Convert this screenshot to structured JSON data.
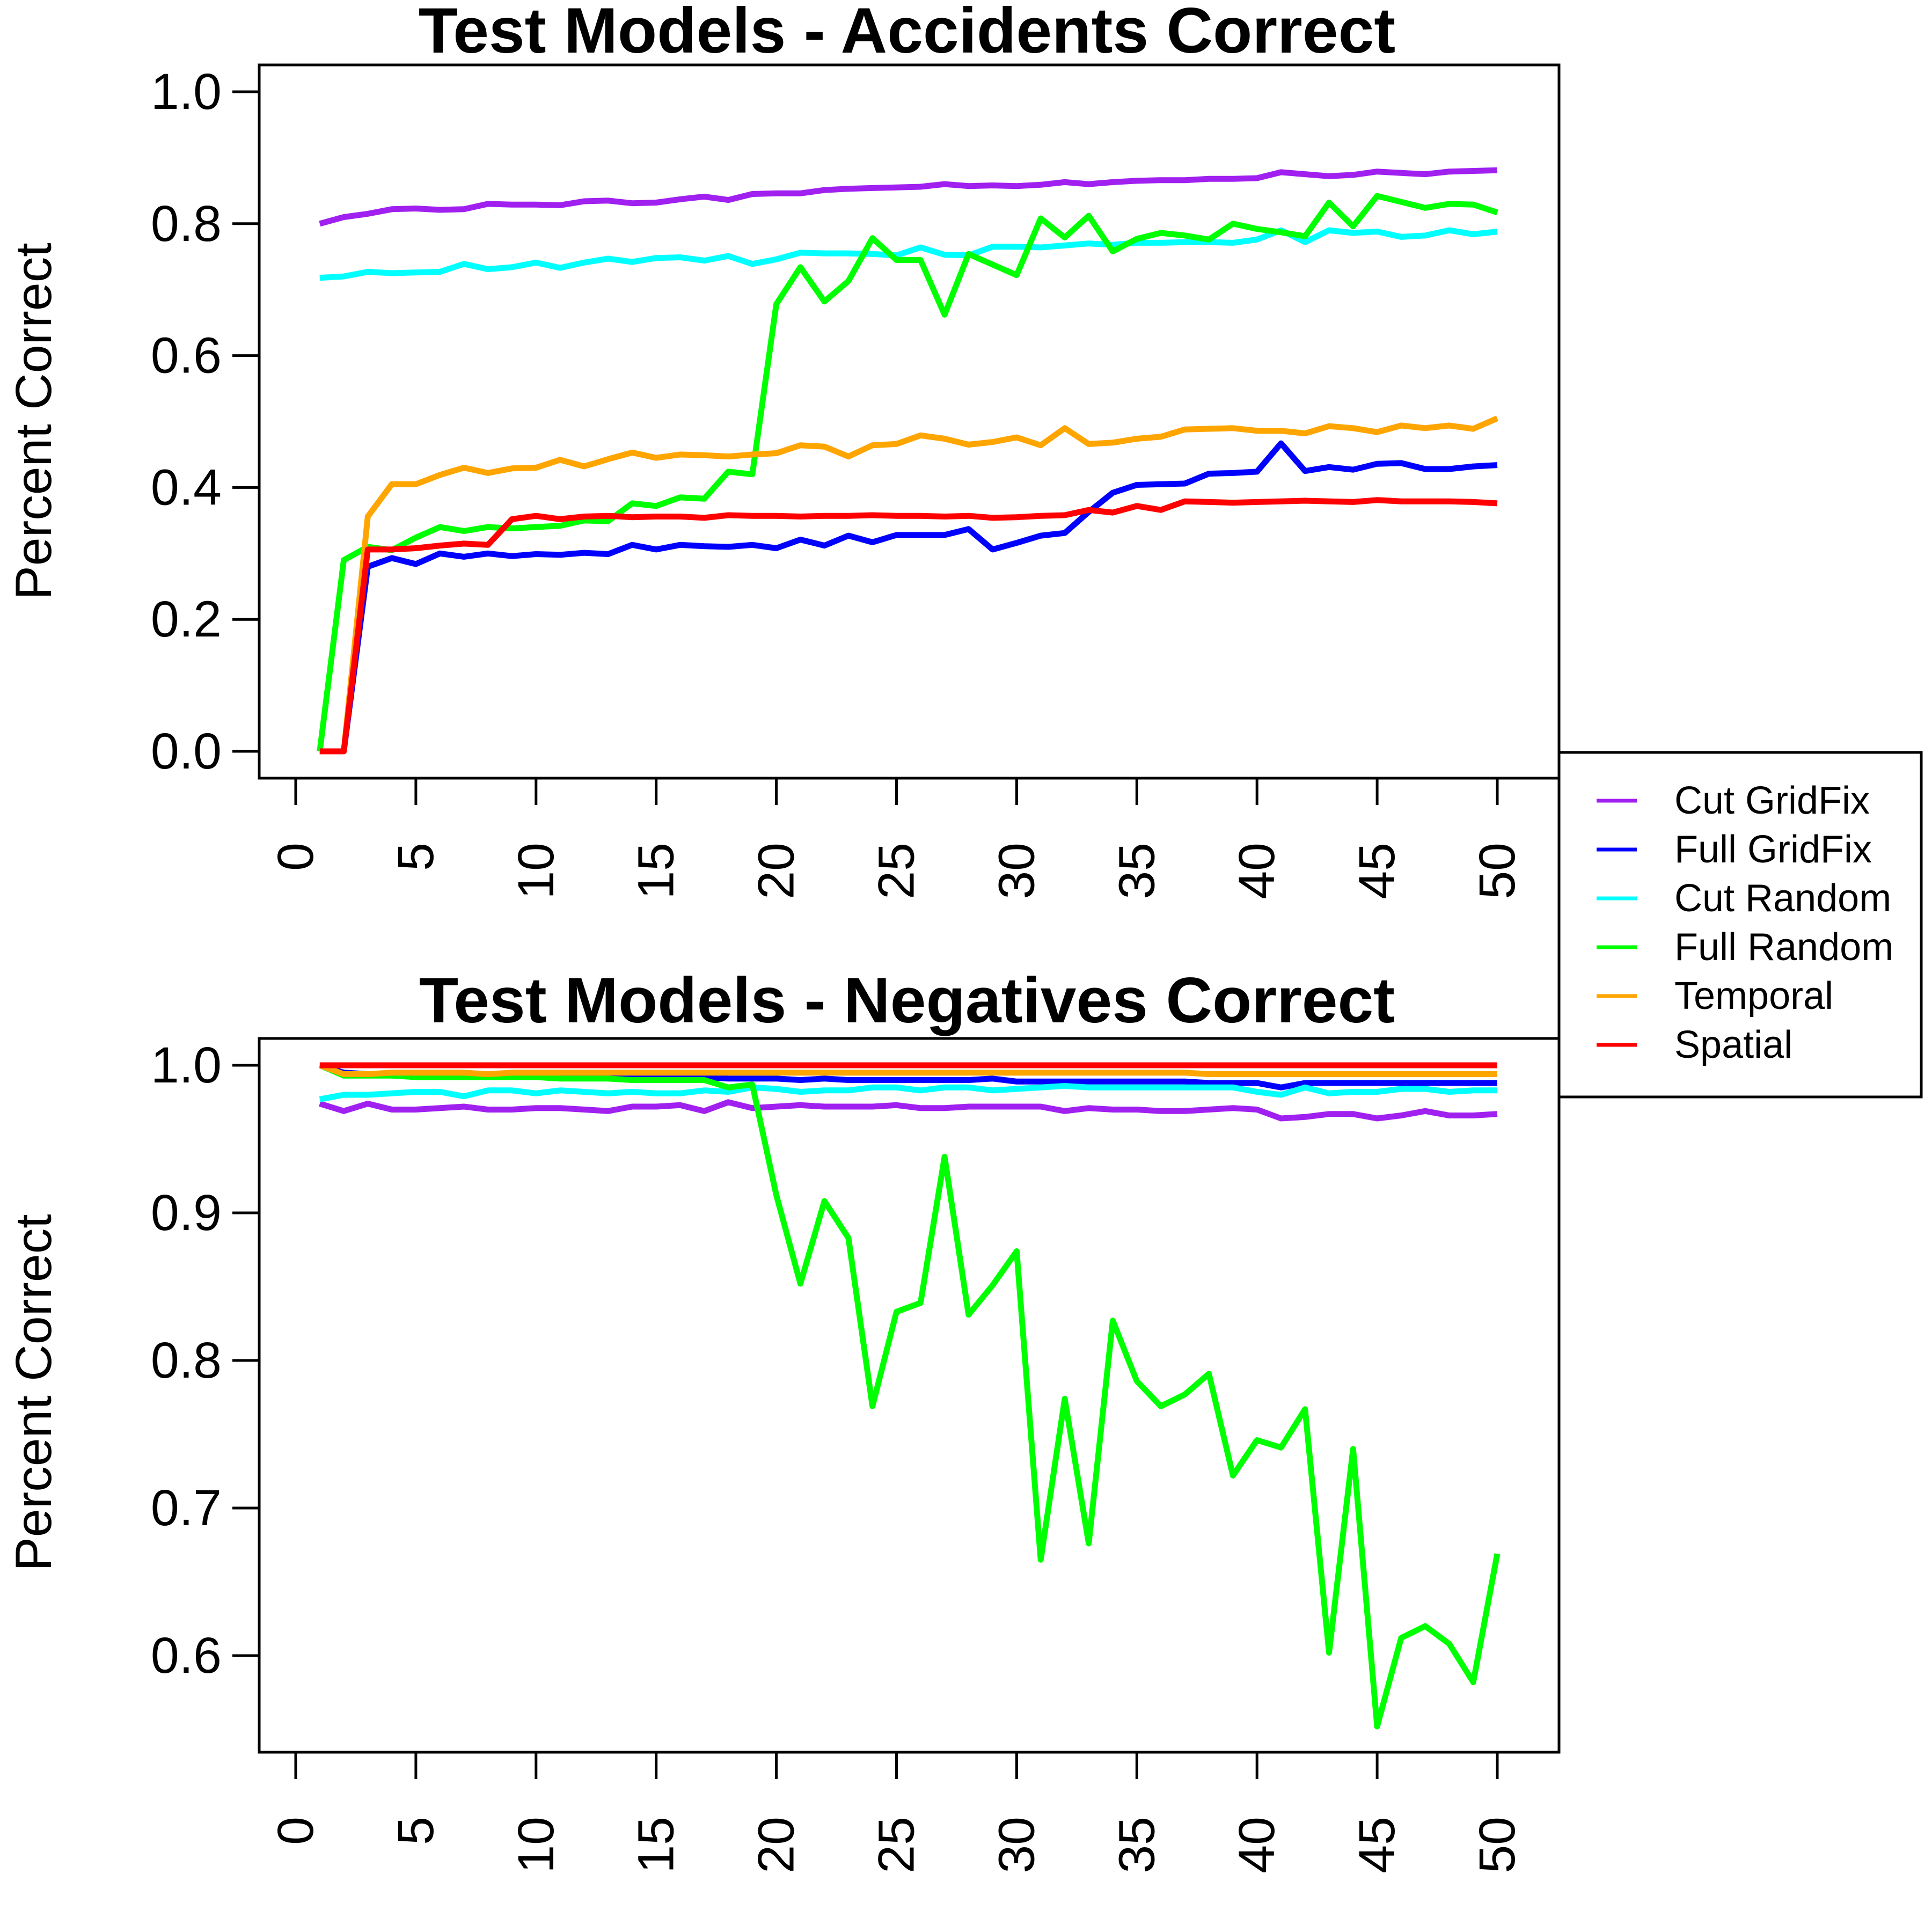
{
  "legend": {
    "placement": "right, between panels",
    "entries": [
      {
        "label": "Cut GridFix",
        "color": "#A020F0"
      },
      {
        "label": "Full GridFix",
        "color": "#0000FF"
      },
      {
        "label": "Cut Random",
        "color": "#00FFFF"
      },
      {
        "label": "Full Random",
        "color": "#00FF00"
      },
      {
        "label": "Temporal",
        "color": "#FFA500"
      },
      {
        "label": "Spatial",
        "color": "#FF0000"
      }
    ]
  },
  "chart_data": [
    {
      "type": "line",
      "title": "Test Models - Accidents Correct",
      "xlabel": "",
      "ylabel": "Percent Correct",
      "xlim": [
        0,
        50
      ],
      "ylim": [
        0,
        1
      ],
      "x_ticks": [
        "0",
        "5",
        "10",
        "15",
        "20",
        "25",
        "30",
        "35",
        "40",
        "45",
        "50"
      ],
      "y_ticks": [
        "0.0",
        "0.2",
        "0.4",
        "0.6",
        "0.8",
        "1.0"
      ],
      "grid": false,
      "x": [
        1,
        2,
        3,
        4,
        5,
        6,
        7,
        8,
        9,
        10,
        11,
        12,
        13,
        14,
        15,
        16,
        17,
        18,
        19,
        20,
        21,
        22,
        23,
        24,
        25,
        26,
        27,
        28,
        29,
        30,
        31,
        32,
        33,
        34,
        35,
        36,
        37,
        38,
        39,
        40,
        41,
        42,
        43,
        44,
        45,
        46,
        47,
        48,
        49,
        50
      ],
      "series": [
        {
          "name": "Cut GridFix",
          "color": "#A020F0",
          "values": [
            0.8,
            0.81,
            0.815,
            0.822,
            0.823,
            0.821,
            0.822,
            0.83,
            0.829,
            0.829,
            0.828,
            0.834,
            0.835,
            0.831,
            0.832,
            0.837,
            0.841,
            0.836,
            0.845,
            0.846,
            0.846,
            0.851,
            0.853,
            0.854,
            0.855,
            0.856,
            0.86,
            0.857,
            0.858,
            0.857,
            0.859,
            0.863,
            0.86,
            0.863,
            0.865,
            0.866,
            0.866,
            0.868,
            0.868,
            0.869,
            0.878,
            0.875,
            0.872,
            0.874,
            0.879,
            0.877,
            0.875,
            0.879,
            0.88,
            0.881
          ]
        },
        {
          "name": "Full GridFix",
          "color": "#0000FF",
          "values": [
            0,
            0,
            0.28,
            0.293,
            0.284,
            0.3,
            0.295,
            0.3,
            0.296,
            0.299,
            0.298,
            0.301,
            0.299,
            0.313,
            0.306,
            0.313,
            0.311,
            0.31,
            0.313,
            0.308,
            0.321,
            0.312,
            0.327,
            0.317,
            0.328,
            0.328,
            0.328,
            0.337,
            0.306,
            0.316,
            0.327,
            0.331,
            0.363,
            0.392,
            0.404,
            0.405,
            0.406,
            0.421,
            0.422,
            0.424,
            0.467,
            0.425,
            0.431,
            0.427,
            0.436,
            0.437,
            0.428,
            0.428,
            0.432,
            0.434
          ]
        },
        {
          "name": "Cut Random",
          "color": "#00FFFF",
          "values": [
            0.718,
            0.72,
            0.727,
            0.725,
            0.726,
            0.727,
            0.739,
            0.731,
            0.734,
            0.741,
            0.733,
            0.741,
            0.747,
            0.742,
            0.748,
            0.749,
            0.744,
            0.751,
            0.739,
            0.746,
            0.756,
            0.755,
            0.755,
            0.754,
            0.752,
            0.764,
            0.753,
            0.752,
            0.765,
            0.765,
            0.764,
            0.767,
            0.77,
            0.768,
            0.771,
            0.771,
            0.772,
            0.772,
            0.771,
            0.776,
            0.79,
            0.772,
            0.79,
            0.786,
            0.788,
            0.78,
            0.782,
            0.79,
            0.784,
            0.788
          ]
        },
        {
          "name": "Full Random",
          "color": "#00FF00",
          "values": [
            0,
            0.29,
            0.31,
            0.305,
            0.324,
            0.34,
            0.334,
            0.34,
            0.338,
            0.34,
            0.342,
            0.35,
            0.349,
            0.376,
            0.372,
            0.385,
            0.383,
            0.424,
            0.42,
            0.678,
            0.734,
            0.682,
            0.713,
            0.778,
            0.745,
            0.745,
            0.662,
            0.754,
            0.738,
            0.722,
            0.808,
            0.779,
            0.812,
            0.758,
            0.777,
            0.786,
            0.782,
            0.776,
            0.8,
            0.792,
            0.787,
            0.781,
            0.832,
            0.796,
            0.842,
            0.833,
            0.824,
            0.83,
            0.829,
            0.817
          ]
        },
        {
          "name": "Temporal",
          "color": "#FFA500",
          "values": [
            0,
            0,
            0.356,
            0.405,
            0.405,
            0.419,
            0.43,
            0.422,
            0.429,
            0.43,
            0.442,
            0.432,
            0.443,
            0.453,
            0.445,
            0.45,
            0.449,
            0.447,
            0.45,
            0.452,
            0.464,
            0.462,
            0.447,
            0.464,
            0.466,
            0.479,
            0.474,
            0.465,
            0.469,
            0.476,
            0.464,
            0.49,
            0.466,
            0.468,
            0.474,
            0.477,
            0.488,
            0.489,
            0.49,
            0.486,
            0.486,
            0.482,
            0.493,
            0.49,
            0.484,
            0.494,
            0.49,
            0.494,
            0.489,
            0.505
          ]
        },
        {
          "name": "Spatial",
          "color": "#FF0000",
          "values": [
            0,
            0,
            0.306,
            0.306,
            0.308,
            0.312,
            0.315,
            0.313,
            0.352,
            0.357,
            0.352,
            0.356,
            0.357,
            0.355,
            0.356,
            0.356,
            0.354,
            0.358,
            0.357,
            0.357,
            0.356,
            0.357,
            0.357,
            0.358,
            0.357,
            0.357,
            0.356,
            0.357,
            0.354,
            0.355,
            0.357,
            0.358,
            0.366,
            0.362,
            0.372,
            0.366,
            0.379,
            0.378,
            0.377,
            0.378,
            0.379,
            0.38,
            0.379,
            0.378,
            0.381,
            0.379,
            0.379,
            0.379,
            0.378,
            0.376
          ]
        }
      ]
    },
    {
      "type": "line",
      "title": "Test Models - Negatives Correct",
      "xlabel": "",
      "ylabel": "Percent Correct",
      "xlim": [
        0,
        50
      ],
      "ylim": [
        0.55,
        1.0
      ],
      "x_ticks": [
        "0",
        "5",
        "10",
        "15",
        "20",
        "25",
        "30",
        "35",
        "40",
        "45",
        "50"
      ],
      "y_ticks": [
        "0.6",
        "0.7",
        "0.8",
        "0.9",
        "1.0"
      ],
      "grid": false,
      "x": [
        1,
        2,
        3,
        4,
        5,
        6,
        7,
        8,
        9,
        10,
        11,
        12,
        13,
        14,
        15,
        16,
        17,
        18,
        19,
        20,
        21,
        22,
        23,
        24,
        25,
        26,
        27,
        28,
        29,
        30,
        31,
        32,
        33,
        34,
        35,
        36,
        37,
        38,
        39,
        40,
        41,
        42,
        43,
        44,
        45,
        46,
        47,
        48,
        49,
        50
      ],
      "series": [
        {
          "name": "Cut GridFix",
          "color": "#A020F0",
          "values": [
            0.974,
            0.969,
            0.974,
            0.97,
            0.97,
            0.971,
            0.972,
            0.97,
            0.97,
            0.971,
            0.971,
            0.97,
            0.969,
            0.972,
            0.972,
            0.973,
            0.969,
            0.975,
            0.971,
            0.972,
            0.973,
            0.972,
            0.972,
            0.972,
            0.973,
            0.971,
            0.971,
            0.972,
            0.972,
            0.972,
            0.972,
            0.969,
            0.971,
            0.97,
            0.97,
            0.969,
            0.969,
            0.97,
            0.971,
            0.97,
            0.964,
            0.965,
            0.967,
            0.967,
            0.964,
            0.966,
            0.969,
            0.966,
            0.966,
            0.967
          ]
        },
        {
          "name": "Full GridFix",
          "color": "#0000FF",
          "values": [
            1.0,
            0.995,
            0.994,
            0.994,
            0.994,
            0.993,
            0.993,
            0.993,
            0.993,
            0.993,
            0.992,
            0.992,
            0.993,
            0.992,
            0.992,
            0.992,
            0.992,
            0.991,
            0.991,
            0.991,
            0.99,
            0.991,
            0.99,
            0.99,
            0.99,
            0.99,
            0.99,
            0.99,
            0.991,
            0.989,
            0.989,
            0.989,
            0.989,
            0.989,
            0.989,
            0.989,
            0.989,
            0.988,
            0.988,
            0.988,
            0.985,
            0.988,
            0.988,
            0.988,
            0.988,
            0.988,
            0.988,
            0.988,
            0.988,
            0.988
          ]
        },
        {
          "name": "Cut Random",
          "color": "#00FFFF",
          "values": [
            0.977,
            0.98,
            0.98,
            0.981,
            0.982,
            0.982,
            0.979,
            0.983,
            0.983,
            0.981,
            0.983,
            0.982,
            0.981,
            0.982,
            0.981,
            0.981,
            0.983,
            0.982,
            0.985,
            0.984,
            0.982,
            0.983,
            0.983,
            0.985,
            0.985,
            0.983,
            0.985,
            0.985,
            0.983,
            0.984,
            0.985,
            0.986,
            0.985,
            0.985,
            0.985,
            0.985,
            0.985,
            0.985,
            0.985,
            0.982,
            0.98,
            0.985,
            0.981,
            0.982,
            0.982,
            0.984,
            0.984,
            0.982,
            0.983,
            0.983
          ]
        },
        {
          "name": "Full Random",
          "color": "#00FF00",
          "values": [
            1.0,
            0.993,
            0.993,
            0.993,
            0.992,
            0.992,
            0.992,
            0.992,
            0.992,
            0.992,
            0.991,
            0.991,
            0.991,
            0.99,
            0.99,
            0.99,
            0.99,
            0.985,
            0.987,
            0.912,
            0.852,
            0.908,
            0.883,
            0.769,
            0.833,
            0.839,
            0.938,
            0.831,
            0.851,
            0.874,
            0.665,
            0.774,
            0.676,
            0.827,
            0.786,
            0.769,
            0.777,
            0.791,
            0.722,
            0.746,
            0.741,
            0.767,
            0.602,
            0.74,
            0.552,
            0.612,
            0.62,
            0.608,
            0.582,
            0.669
          ]
        },
        {
          "name": "Temporal",
          "color": "#FFA500",
          "values": [
            1.0,
            0.994,
            0.994,
            0.995,
            0.995,
            0.995,
            0.995,
            0.994,
            0.995,
            0.995,
            0.995,
            0.995,
            0.995,
            0.995,
            0.995,
            0.995,
            0.995,
            0.995,
            0.995,
            0.995,
            0.995,
            0.995,
            0.995,
            0.995,
            0.995,
            0.995,
            0.995,
            0.995,
            0.995,
            0.995,
            0.995,
            0.995,
            0.995,
            0.995,
            0.995,
            0.995,
            0.995,
            0.994,
            0.994,
            0.994,
            0.994,
            0.994,
            0.994,
            0.994,
            0.994,
            0.994,
            0.994,
            0.994,
            0.994,
            0.994
          ]
        },
        {
          "name": "Spatial",
          "color": "#FF0000",
          "values": [
            1.0,
            1.0,
            1.0,
            1.0,
            1.0,
            1.0,
            1.0,
            1.0,
            1.0,
            1.0,
            1.0,
            1.0,
            1.0,
            1.0,
            1.0,
            1.0,
            1.0,
            1.0,
            1.0,
            1.0,
            1.0,
            1.0,
            1.0,
            1.0,
            1.0,
            1.0,
            1.0,
            1.0,
            1.0,
            1.0,
            1.0,
            1.0,
            1.0,
            1.0,
            1.0,
            1.0,
            1.0,
            1.0,
            1.0,
            1.0,
            1.0,
            1.0,
            1.0,
            1.0,
            1.0,
            1.0,
            1.0,
            1.0,
            1.0,
            1.0
          ]
        }
      ]
    }
  ]
}
